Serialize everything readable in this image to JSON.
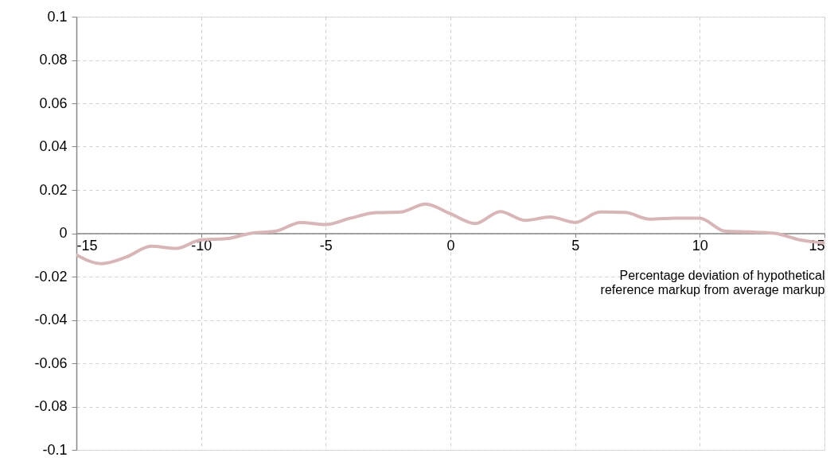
{
  "chart_data": {
    "type": "line",
    "xlabel": "Percentage deviation of hypothetical reference markup from average markup",
    "x": [
      -15,
      -14,
      -13,
      -12,
      -11,
      -10,
      -9,
      -8,
      -7,
      -6,
      -5,
      -4,
      -3,
      -2,
      -1,
      0,
      1,
      2,
      3,
      4,
      5,
      6,
      7,
      8,
      9,
      10,
      11,
      12,
      13,
      14,
      15
    ],
    "series": [
      {
        "color": "#dbb5b5",
        "values": [
          -0.01,
          -0.014,
          -0.011,
          -0.006,
          -0.007,
          -0.003,
          -0.0025,
          0.0,
          0.001,
          0.005,
          0.004,
          0.007,
          0.0095,
          0.0098,
          0.0135,
          0.009,
          0.0045,
          0.01,
          0.006,
          0.0075,
          0.005,
          0.0098,
          0.0096,
          0.0065,
          0.007,
          0.007,
          0.001,
          0.0006,
          0.0,
          -0.003,
          -0.0045
        ]
      }
    ],
    "xlim": [
      -15,
      15
    ],
    "xticks": [
      -15,
      -10,
      -5,
      0,
      5,
      10,
      15
    ],
    "ylim": [
      -0.1,
      0.1
    ],
    "yticks": [
      -0.1,
      -0.08,
      -0.06,
      -0.04,
      -0.02,
      0,
      0.02,
      0.04,
      0.06,
      0.08,
      0.1
    ],
    "grid": true,
    "marker": "none",
    "line_style": "solid"
  }
}
